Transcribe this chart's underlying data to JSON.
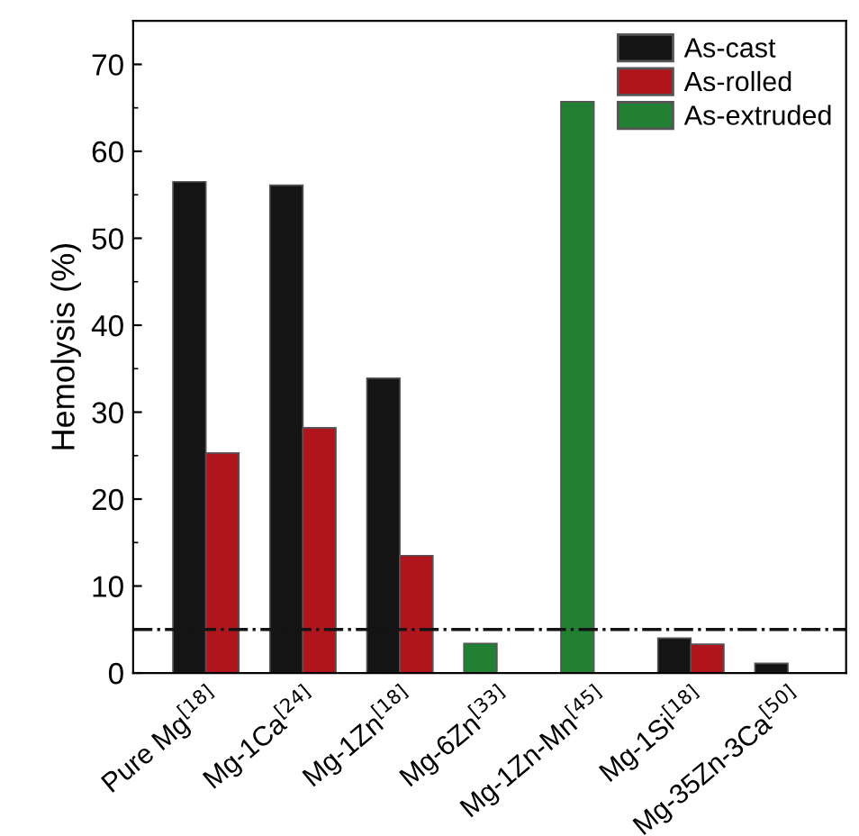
{
  "chart_data": {
    "type": "bar",
    "ylabel": "Hemolysis (%)",
    "categories": [
      "Pure Mg$^{[18]}$",
      "Mg-1Ca$^{[24]}$",
      "Mg-1Zn$^{[18]}$",
      "Mg-6Zn$^{[33]}$",
      "Mg-1Zn-Mn$^{[45]}$",
      "Mg-1Si$^{[18]}$",
      "Mg-35Zn-3Ca$^{[50]}$"
    ],
    "series": [
      {
        "name": "As-cast",
        "color": "#141414",
        "values": [
          56.5,
          56.1,
          33.9,
          null,
          null,
          4.0,
          1.1
        ]
      },
      {
        "name": "As-rolled",
        "color": "#b0141c",
        "values": [
          25.3,
          28.2,
          13.5,
          null,
          null,
          3.3,
          null
        ]
      },
      {
        "name": "As-extruded",
        "color": "#228034",
        "values": [
          null,
          null,
          null,
          3.4,
          65.7,
          null,
          null
        ]
      }
    ],
    "ylim": [
      0,
      75
    ],
    "yticks": [
      0,
      10,
      20,
      30,
      40,
      50,
      60,
      70
    ],
    "ref_lines": [
      {
        "axis": "y",
        "value": 5,
        "color": "#141414",
        "line_style": "dashdot"
      }
    ],
    "legend": "top right",
    "grid": false
  }
}
